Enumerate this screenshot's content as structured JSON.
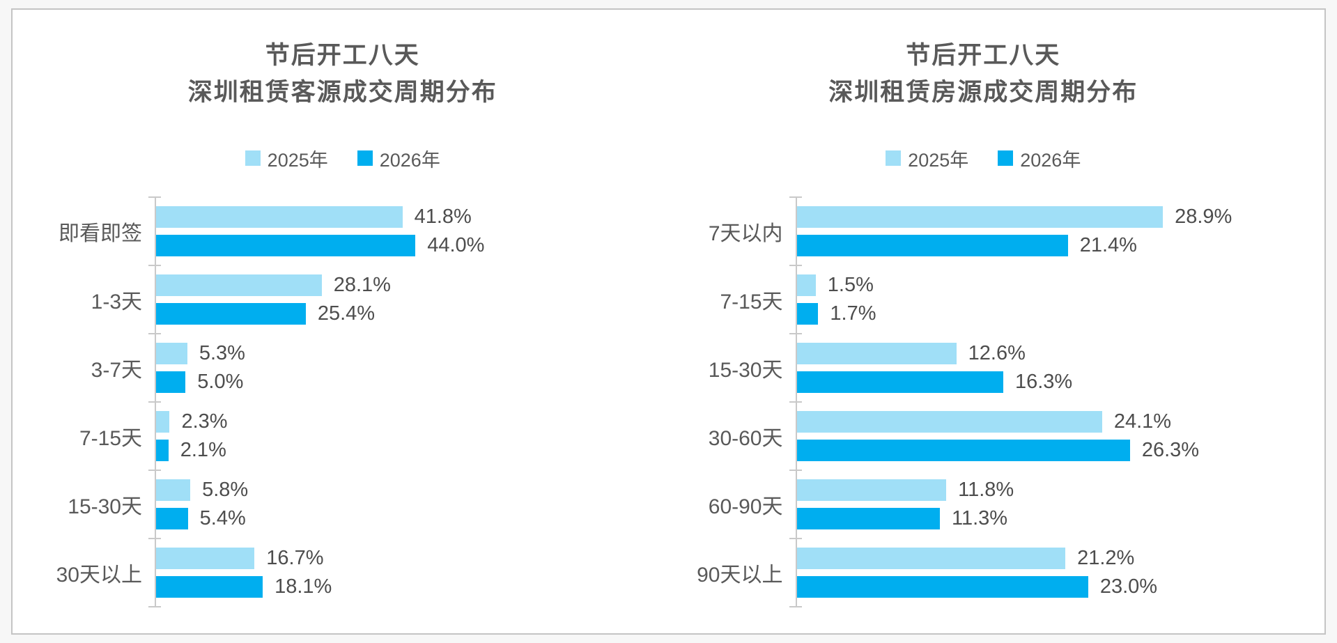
{
  "page": {
    "outer_background": "#f7f7f7",
    "inner_background": "#ffffff",
    "border_color": "#c4c4c4"
  },
  "text_colors": {
    "title": "#595959",
    "category": "#595959",
    "value": "#4d4d4d",
    "legend": "#595959"
  },
  "axis_color": "#c9c9c9",
  "chart_data": [
    {
      "type": "bar",
      "orientation": "horizontal",
      "title": [
        "节后开工八天",
        "深圳租赁客源成交周期分布"
      ],
      "legend_position": "top",
      "grid": false,
      "value_suffix": "%",
      "xlim": [
        0,
        86
      ],
      "categories": [
        "即看即签",
        "1-3天",
        "3-7天",
        "7-15天",
        "15-30天",
        "30天以上"
      ],
      "series": [
        {
          "name": "2025年",
          "color": "#A0DFF7",
          "values": [
            41.8,
            28.1,
            5.3,
            2.3,
            5.8,
            16.7
          ],
          "labels": [
            "41.8%",
            "28.1%",
            "5.3%",
            "2.3%",
            "5.8%",
            "16.7%"
          ]
        },
        {
          "name": "2026年",
          "color": "#00AEEF",
          "values": [
            44.0,
            25.4,
            5.0,
            2.1,
            5.4,
            18.1
          ],
          "labels": [
            "44.0%",
            "25.4%",
            "5.0%",
            "2.1%",
            "5.4%",
            "18.1%"
          ]
        }
      ]
    },
    {
      "type": "bar",
      "orientation": "horizontal",
      "title": [
        "节后开工八天",
        "深圳租赁房源成交周期分布"
      ],
      "legend_position": "top",
      "grid": false,
      "value_suffix": "%",
      "xlim": [
        0,
        40
      ],
      "categories": [
        "7天以内",
        "7-15天",
        "15-30天",
        "30-60天",
        "60-90天",
        "90天以上"
      ],
      "series": [
        {
          "name": "2025年",
          "color": "#A0DFF7",
          "values": [
            28.9,
            1.5,
            12.6,
            24.1,
            11.8,
            21.2
          ],
          "labels": [
            "28.9%",
            "1.5%",
            "12.6%",
            "24.1%",
            "11.8%",
            "21.2%"
          ]
        },
        {
          "name": "2026年",
          "color": "#00AEEF",
          "values": [
            21.4,
            1.7,
            16.3,
            26.3,
            11.3,
            23.0
          ],
          "labels": [
            "21.4%",
            "1.7%",
            "16.3%",
            "26.3%",
            "11.3%",
            "23.0%"
          ]
        }
      ]
    }
  ]
}
